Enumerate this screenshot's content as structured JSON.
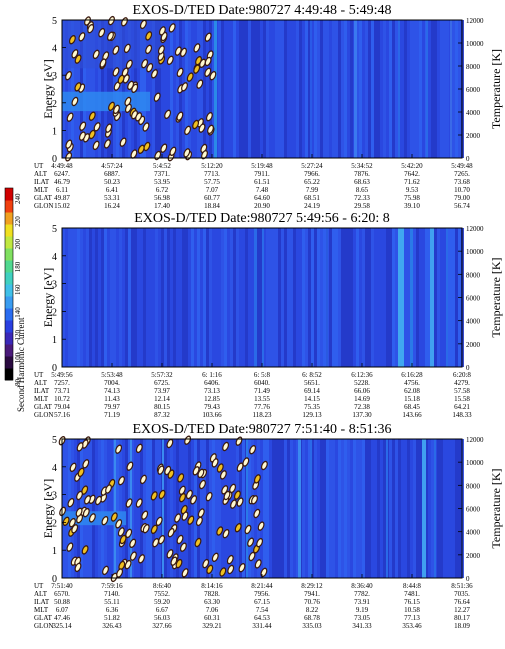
{
  "colorbar": {
    "label": "Second Harmonic Current",
    "ticks": [
      "240",
      "220",
      "200",
      "180",
      "160",
      "140",
      "120",
      "100",
      "80"
    ],
    "colors": [
      "#000000",
      "#2a0a40",
      "#4a1a7a",
      "#3a28b8",
      "#2a3fe0",
      "#2a6cf0",
      "#3a9cf0",
      "#40c0e8",
      "#40d0c0",
      "#50d890",
      "#80e060",
      "#c0e840",
      "#f0e020",
      "#f0a020",
      "#f04010",
      "#d00000"
    ]
  },
  "left_axis": {
    "label": "Energy [eV]",
    "ticks": [
      "0",
      "1",
      "2",
      "3",
      "4",
      "5"
    ]
  },
  "right_axis": {
    "label": "Temperature [K]",
    "ticks": [
      "0",
      "2000",
      "4000",
      "6000",
      "8000",
      "10000",
      "12000"
    ]
  },
  "row_labels": [
    "UT",
    "ALT",
    "ILAT",
    "MLT",
    "GLAT",
    "GLON"
  ],
  "chart_data": [
    {
      "type": "heatmap",
      "title": "EXOS-D/TED   Date:980727  4:49:48 - 5:49:48",
      "ylim": [
        0,
        5
      ],
      "y2lim": [
        0,
        12000
      ],
      "table": [
        [
          "4:49:48",
          "4:57:24",
          "5:4:52",
          "5:12:20",
          "5:19:48",
          "5:27:24",
          "5:34:52",
          "5:42:20",
          "5:49:48"
        ],
        [
          "6247.",
          "6887.",
          "7371.",
          "7713.",
          "7911.",
          "7966.",
          "7876.",
          "7642.",
          "7265."
        ],
        [
          "46.79",
          "50.23",
          "53.95",
          "57.75",
          "61.51",
          "65.22",
          "68.63",
          "71.62",
          "73.68"
        ],
        [
          "6.11",
          "6.41",
          "6.72",
          "7.07",
          "7.48",
          "7.99",
          "8.65",
          "9.53",
          "10.70"
        ],
        [
          "49.87",
          "53.31",
          "56.98",
          "60.77",
          "64.60",
          "68.51",
          "72.33",
          "75.98",
          "79.00"
        ],
        [
          "15.02",
          "16.24",
          "17.40",
          "18.84",
          "20.90",
          "24.19",
          "29.58",
          "39.10",
          "56.74"
        ]
      ]
    },
    {
      "type": "heatmap",
      "title": "EXOS-D/TED   Date:980727  5:49:56 - 6:20: 8",
      "ylim": [
        0,
        5
      ],
      "y2lim": [
        0,
        12000
      ],
      "table": [
        [
          "5:49:56",
          "5:53:48",
          "5:57:32",
          "6: 1:16",
          "6: 5:8",
          "6: 8:52",
          "6:12:36",
          "6:16:28",
          "6:20:8"
        ],
        [
          "7257.",
          "7004.",
          "6725.",
          "6406.",
          "6040.",
          "5651.",
          "5228.",
          "4756.",
          "4279."
        ],
        [
          "73.71",
          "74.13",
          "73.97",
          "73.13",
          "71.49",
          "69.14",
          "66.06",
          "62.08",
          "57.58"
        ],
        [
          "10.72",
          "11.43",
          "12.14",
          "12.85",
          "13.55",
          "14.15",
          "14.69",
          "15.18",
          "15.58"
        ],
        [
          "79.04",
          "79.97",
          "80.15",
          "79.43",
          "77.76",
          "75.35",
          "72.38",
          "68.45",
          "64.21"
        ],
        [
          "57.16",
          "71.19",
          "87.32",
          "103.66",
          "118.23",
          "129.13",
          "137.30",
          "143.66",
          "148.33"
        ]
      ]
    },
    {
      "type": "heatmap",
      "title": "EXOS-D/TED   Date:980727  7:51:40 - 8:51:36",
      "ylim": [
        0,
        5
      ],
      "y2lim": [
        0,
        12000
      ],
      "table": [
        [
          "7:51:40",
          "7:59:16",
          "8:6:40",
          "8:14:16",
          "8:21:44",
          "8:29:12",
          "8:36:40",
          "8:44:8",
          "8:51:36"
        ],
        [
          "6570.",
          "7140.",
          "7552.",
          "7828.",
          "7956.",
          "7941.",
          "7782.",
          "7481.",
          "7035."
        ],
        [
          "50.88",
          "55.11",
          "59.20",
          "63.30",
          "67.15",
          "70.76",
          "73.91",
          "76.15",
          "76.64"
        ],
        [
          "6.07",
          "6.36",
          "6.67",
          "7.06",
          "7.54",
          "8.22",
          "9.19",
          "10.58",
          "12.27"
        ],
        [
          "47.46",
          "51.82",
          "56.03",
          "60.31",
          "64.53",
          "68.78",
          "73.05",
          "77.13",
          "80.17"
        ],
        [
          "325.14",
          "326.43",
          "327.66",
          "329.21",
          "331.44",
          "335.03",
          "341.33",
          "353.46",
          "18.09"
        ]
      ]
    }
  ]
}
